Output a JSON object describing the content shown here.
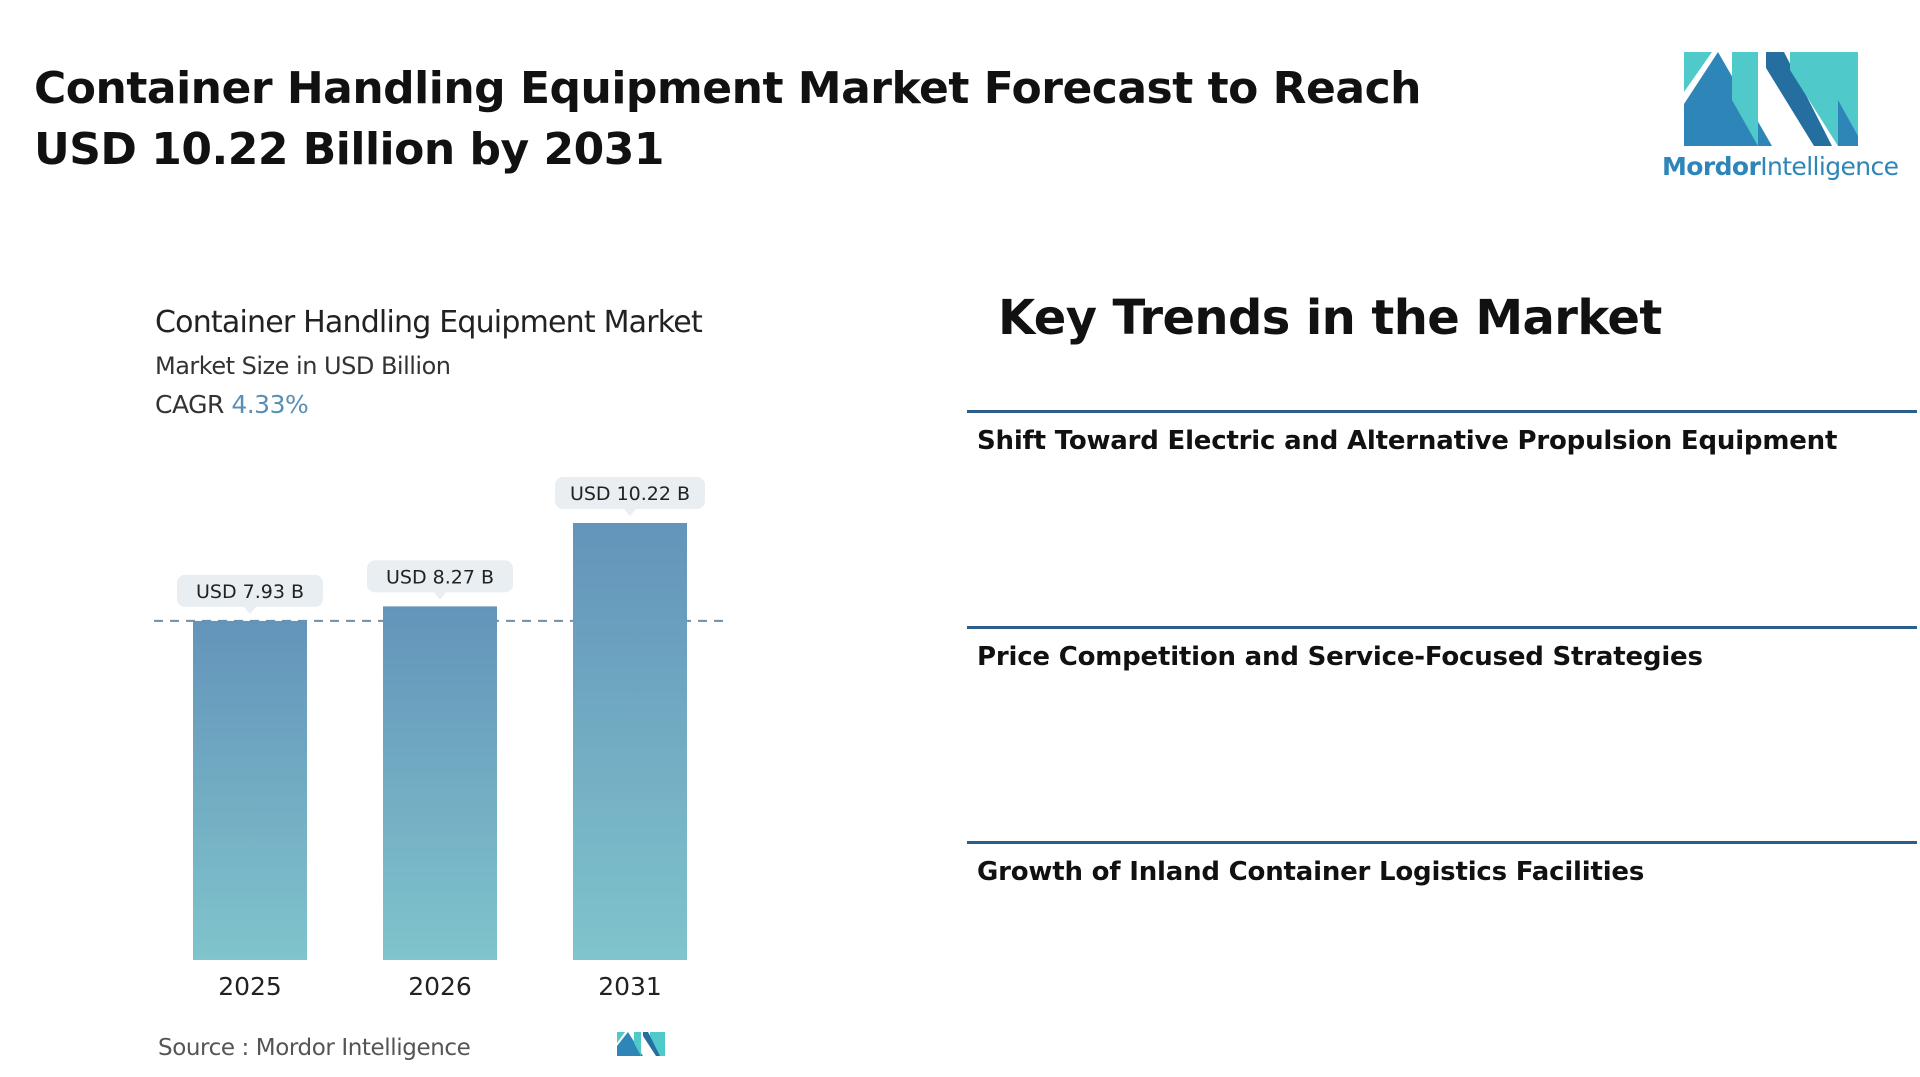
{
  "headline": "Container Handling Equipment Market Forecast to Reach USD 10.22 Billion by 2031",
  "brand": {
    "name_bold": "Mordor",
    "name_light": "Intelligence",
    "colors": {
      "teal": "#4fc9c9",
      "blue": "#2e86b8",
      "dark_blue": "#256fa0"
    }
  },
  "chart_data": {
    "type": "bar",
    "title": "Container Handling Equipment Market",
    "subtitle": "Market Size in USD Billion",
    "cagr_label": "CAGR",
    "cagr_value": "4.33%",
    "categories": [
      "2025",
      "2026",
      "2031"
    ],
    "values": [
      7.93,
      8.27,
      10.22
    ],
    "data_labels": [
      "USD 7.93 B",
      "USD 8.27 B",
      "USD 10.22 B"
    ],
    "reference_line_value": 7.93,
    "ylim": [
      0,
      10.22
    ],
    "grid": false,
    "bar_color_top": "#6394ba",
    "bar_color_bottom": "#80c4cc",
    "label_bg": "#e8eef1"
  },
  "source": "Source :  Mordor Intelligence",
  "trends": {
    "heading": "Key Trends in the Market",
    "items": [
      "Shift Toward Electric and Alternative Propulsion Equipment",
      "Price Competition and Service-Focused Strategies",
      "Growth of Inland Container Logistics Facilities"
    ],
    "line_color": "#2b5e8a"
  }
}
